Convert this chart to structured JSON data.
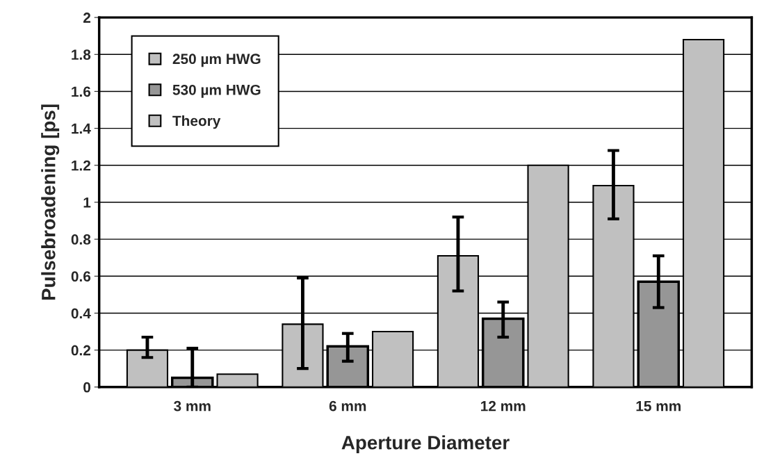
{
  "chart_data": {
    "type": "bar",
    "xlabel": "Aperture Diameter",
    "ylabel": "Pulsebroadening [ps]",
    "categories": [
      "3 mm",
      "6 mm",
      "12 mm",
      "15 mm"
    ],
    "series": [
      {
        "name": "250 µm HWG",
        "color": "#c0c0c0",
        "values": [
          0.2,
          0.34,
          0.71,
          1.09
        ],
        "errors": [
          [
            0.16,
            0.27
          ],
          [
            0.1,
            0.59
          ],
          [
            0.52,
            0.92
          ],
          [
            0.91,
            1.28
          ]
        ]
      },
      {
        "name": "530 µm HWG",
        "color": "#969696",
        "values": [
          0.05,
          0.22,
          0.37,
          0.57
        ],
        "errors": [
          [
            0.0,
            0.21
          ],
          [
            0.14,
            0.29
          ],
          [
            0.27,
            0.46
          ],
          [
            0.43,
            0.71
          ]
        ]
      },
      {
        "name": "Theory",
        "color": "#c0c0c0",
        "values": [
          0.07,
          0.3,
          1.2,
          1.88
        ]
      }
    ],
    "ylim": [
      0,
      2
    ],
    "yticks": [
      0,
      0.2,
      0.4,
      0.6,
      0.8,
      1,
      1.2,
      1.4,
      1.6,
      1.8,
      2
    ],
    "grid": "y",
    "legend": "top left"
  }
}
